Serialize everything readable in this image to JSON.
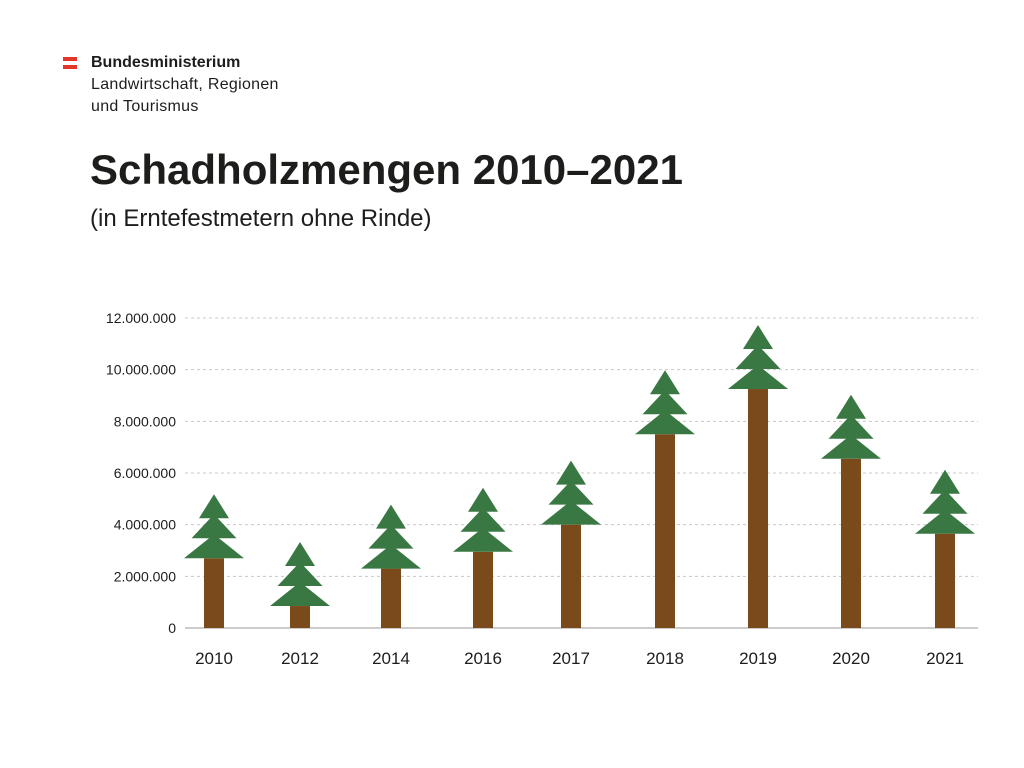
{
  "logo": {
    "line1": "Bundesministerium",
    "line2": "Landwirtschaft, Regionen",
    "line3": "und Tourismus",
    "flag_colors": [
      "#e2362b",
      "#ffffff",
      "#e2362b"
    ]
  },
  "chart_data": {
    "type": "bar",
    "title": "Schadholzmengen 2010–2021",
    "subtitle": "(in Erntefestmetern ohne Rinde)",
    "categories": [
      "2010",
      "2012",
      "2014",
      "2016",
      "2017",
      "2018",
      "2019",
      "2020",
      "2021"
    ],
    "values": [
      2700000,
      850000,
      2300000,
      2950000,
      4000000,
      7500000,
      9250000,
      6550000,
      3650000
    ],
    "ylim": [
      0,
      12000000
    ],
    "yticks": [
      0,
      2000000,
      4000000,
      6000000,
      8000000,
      10000000,
      12000000
    ],
    "ytick_labels": [
      "0",
      "2.000.000",
      "4.000.000",
      "6.000.000",
      "8.000.000",
      "10.000.000",
      "12.000.000"
    ],
    "grid": true,
    "colors": {
      "trunk": "#7a4a1a",
      "crown": "#3a7843",
      "grid": "#c8c8c8",
      "axis": "#999999"
    }
  }
}
